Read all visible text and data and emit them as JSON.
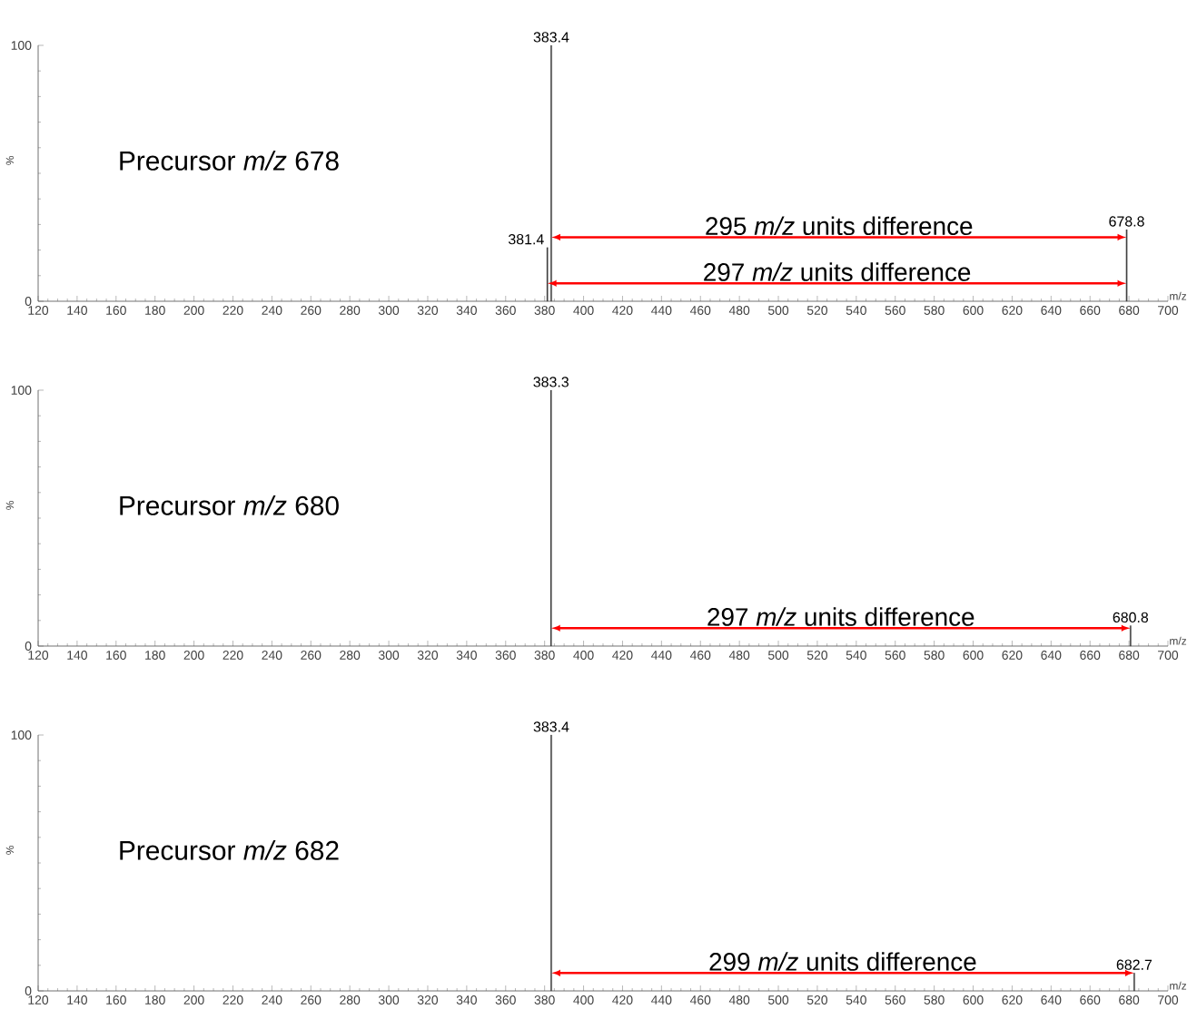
{
  "chart_data": [
    {
      "type": "bar",
      "title": "Precursor *m/z* 678",
      "xlabel": "m/z",
      "ylabel": "%",
      "x": [
        381.4,
        383.4,
        678.8
      ],
      "values": [
        21,
        100,
        28
      ],
      "color": "#404040",
      "xlim": [
        120,
        700
      ],
      "ylim": [
        0,
        100
      ],
      "xticks": [
        120,
        140,
        160,
        180,
        200,
        220,
        240,
        260,
        280,
        300,
        320,
        340,
        360,
        380,
        400,
        420,
        440,
        460,
        480,
        500,
        520,
        540,
        560,
        580,
        600,
        620,
        640,
        660,
        680,
        700
      ],
      "yticks": [
        0,
        100
      ],
      "annotations": [
        {
          "text": "381.4",
          "x": 381.4,
          "y": 21
        },
        {
          "text": "383.4",
          "x": 383.4,
          "y": 100
        },
        {
          "text": "678.8",
          "x": 678.8,
          "y": 28
        },
        "295 *m/z* units difference",
        "297 *m/z* units difference"
      ]
    },
    {
      "type": "bar",
      "title": "Precursor *m/z* 680",
      "xlabel": "m/z",
      "ylabel": "%",
      "x": [
        383.3,
        680.8
      ],
      "values": [
        100,
        8
      ],
      "color": "#404040",
      "xlim": [
        120,
        700
      ],
      "ylim": [
        0,
        100
      ],
      "xticks": [
        120,
        140,
        160,
        180,
        200,
        220,
        240,
        260,
        280,
        300,
        320,
        340,
        360,
        380,
        400,
        420,
        440,
        460,
        480,
        500,
        520,
        540,
        560,
        580,
        600,
        620,
        640,
        660,
        680,
        700
      ],
      "yticks": [
        0,
        100
      ],
      "annotations": [
        {
          "text": "383.3",
          "x": 383.3,
          "y": 100
        },
        {
          "text": "680.8",
          "x": 680.8,
          "y": 8
        },
        "297 *m/z* units difference"
      ]
    },
    {
      "type": "bar",
      "title": "Precursor *m/z* 682",
      "xlabel": "m/z",
      "ylabel": "%",
      "x": [
        383.4,
        682.7
      ],
      "values": [
        100,
        7
      ],
      "color": "#404040",
      "xlim": [
        120,
        700
      ],
      "ylim": [
        0,
        100
      ],
      "xticks": [
        120,
        140,
        160,
        180,
        200,
        220,
        240,
        260,
        280,
        300,
        320,
        340,
        360,
        380,
        400,
        420,
        440,
        460,
        480,
        500,
        520,
        540,
        560,
        580,
        600,
        620,
        640,
        660,
        680,
        700
      ],
      "yticks": [
        0,
        100
      ],
      "annotations": [
        {
          "text": "383.4",
          "x": 383.4,
          "y": 100
        },
        {
          "text": "682.7",
          "x": 682.7,
          "y": 7
        },
        "299 *m/z* units difference"
      ]
    }
  ]
}
